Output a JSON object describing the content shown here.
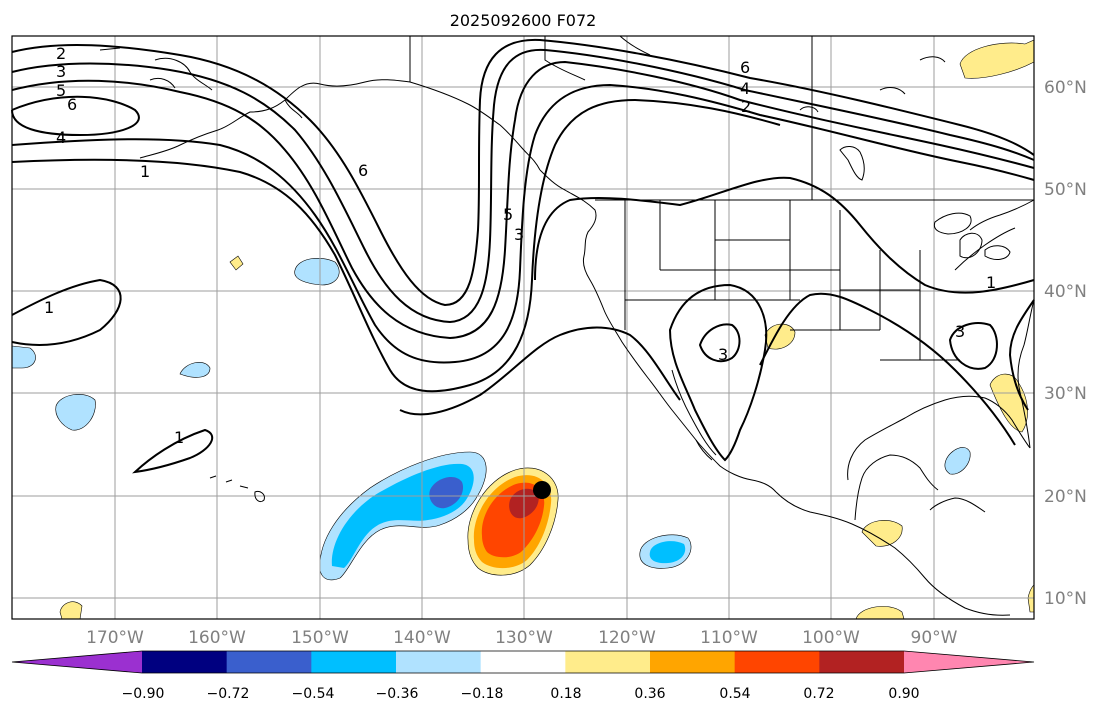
{
  "map": {
    "title": "2025092600 F072",
    "lon_labels": [
      "170°W",
      "160°W",
      "150°W",
      "140°W",
      "130°W",
      "120°W",
      "110°W",
      "100°W",
      "90°W"
    ],
    "lat_labels": [
      "60°N",
      "50°N",
      "40°N",
      "30°N",
      "20°N",
      "10°N"
    ],
    "contour_labels": [
      "2",
      "3",
      "5",
      "6",
      "4",
      "1",
      "6",
      "5",
      "3",
      "6",
      "4",
      "2",
      "1",
      "1",
      "3",
      "3",
      "1"
    ],
    "colors": {
      "land_line": "#000000",
      "grid": "#9e9e9e",
      "contour": "#000000",
      "axis_text": "#808080"
    }
  },
  "colorbar": {
    "ticks": [
      "−0.90",
      "−0.72",
      "−0.54",
      "−0.36",
      "−0.18",
      "0.18",
      "0.36",
      "0.54",
      "0.72",
      "0.90"
    ],
    "colors": [
      "#9b30d0",
      "#000080",
      "#3a5fcd",
      "#00bfff",
      "#b0e2ff",
      "#ffffff",
      "#ffec8b",
      "#ffa500",
      "#ff4500",
      "#b22222",
      "#ff86b0"
    ]
  }
}
